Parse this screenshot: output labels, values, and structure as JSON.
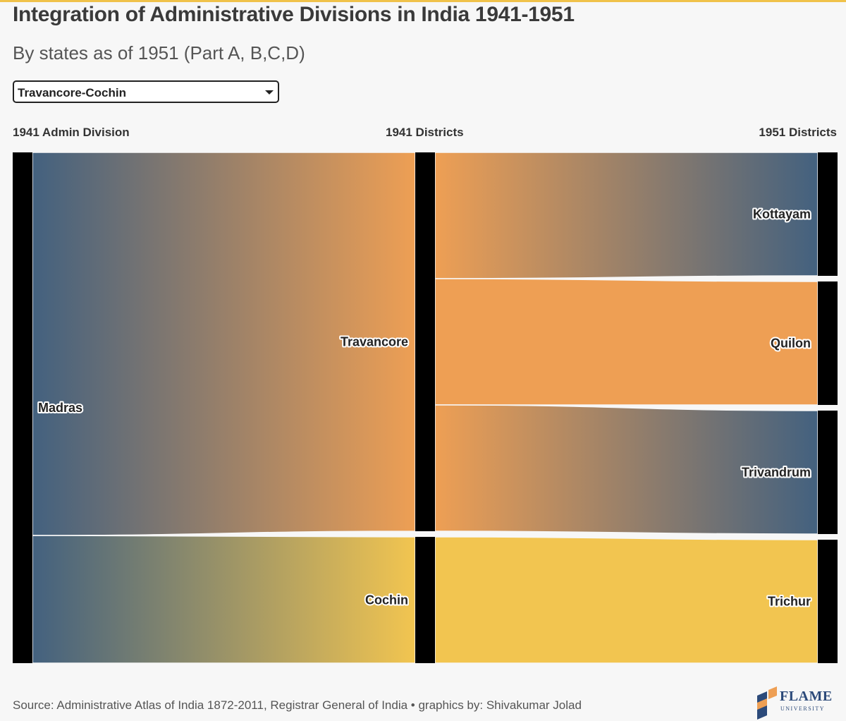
{
  "header": {
    "title": "Integration of Administrative Divisions in India 1941-1951",
    "subtitle": "By states as of 1951 (Part A, B,C,D)"
  },
  "filter": {
    "selected": "Travancore-Cochin"
  },
  "columns": {
    "left": "1941 Admin Division",
    "middle": "1941 Districts",
    "right": "1951 Districts"
  },
  "colors": {
    "madras": "#43617f",
    "travancore": "#ee9f54",
    "cochin": "#f2c550",
    "kottayam": "#43617f",
    "quilon": "#ee9f54",
    "trivandrum": "#43617f",
    "trichur": "#f2c550",
    "node_bar": "#000000"
  },
  "chart_data": {
    "type": "sankey",
    "stages": [
      "1941 Admin Division",
      "1941 Districts",
      "1951 Districts"
    ],
    "nodes": [
      {
        "id": "madras",
        "label": "Madras",
        "stage": 0
      },
      {
        "id": "travancore",
        "label": "Travancore",
        "stage": 1
      },
      {
        "id": "cochin",
        "label": "Cochin",
        "stage": 1
      },
      {
        "id": "kottayam",
        "label": "Kottayam",
        "stage": 2
      },
      {
        "id": "quilon",
        "label": "Quilon",
        "stage": 2
      },
      {
        "id": "trivandrum",
        "label": "Trivandrum",
        "stage": 2
      },
      {
        "id": "trichur",
        "label": "Trichur",
        "stage": 2
      }
    ],
    "links": [
      {
        "source": "madras",
        "target": "travancore",
        "value": 3
      },
      {
        "source": "madras",
        "target": "cochin",
        "value": 1
      },
      {
        "source": "travancore",
        "target": "kottayam",
        "value": 1
      },
      {
        "source": "travancore",
        "target": "quilon",
        "value": 1
      },
      {
        "source": "travancore",
        "target": "trivandrum",
        "value": 1
      },
      {
        "source": "cochin",
        "target": "trichur",
        "value": 1
      }
    ]
  },
  "footer": {
    "source": "Source: Administrative Atlas of India 1872-2011, Registrar General of India • graphics by: Shivakumar Jolad",
    "logo_main": "FLAME",
    "logo_sub": "UNIVERSITY"
  }
}
